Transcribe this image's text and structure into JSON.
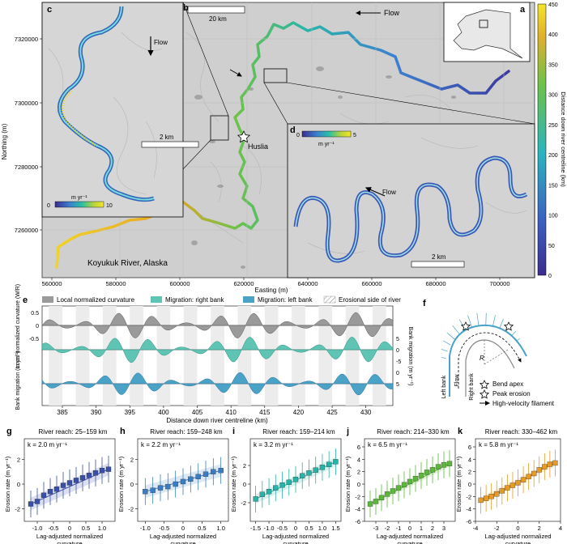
{
  "map": {
    "panel_labels": [
      "a",
      "b",
      "c",
      "d",
      "e",
      "f",
      "g",
      "h",
      "i",
      "j",
      "k"
    ],
    "scalebar_b": "20 km",
    "scalebar_c": "2 km",
    "scalebar_d": "2 km",
    "flow_label": "Flow",
    "town_label": "Huslia",
    "river_label": "Koyukuk River, Alaska",
    "easting_label": "Easting (m)",
    "northing_label": "Northing (m)",
    "easting_ticks": [
      "560000",
      "580000",
      "600000",
      "620000",
      "640000",
      "660000",
      "680000",
      "700000"
    ],
    "northing_ticks": [
      "7320000",
      "7300000",
      "7280000",
      "7260000"
    ],
    "colorbar_label": "Distance down river centreline (km)",
    "colorbar_ticks": [
      "450",
      "400",
      "350",
      "300",
      "250",
      "200",
      "150",
      "100",
      "50",
      "0"
    ],
    "cb_c": {
      "unit": "m yr⁻¹",
      "min": "0",
      "max": "10"
    },
    "cb_d": {
      "unit": "m yr⁻¹",
      "min": "0",
      "max": "5"
    }
  },
  "legend_e": {
    "curvature": "Local normalized curvature",
    "right": "Migration: right bank",
    "left": "Migration: left bank",
    "erosional": "Erosional side of river"
  },
  "panel_e": {
    "ylabel_top": "Local normalized curvature (W/R)",
    "ylabel_mid": "Bank migration (m yr⁻¹)",
    "ylabel_right": "Bank migration (m yr⁻¹)",
    "xlabel": "Distance down river centreline (km)",
    "xticks": [
      "385",
      "390",
      "395",
      "400",
      "405",
      "410",
      "415",
      "420",
      "425",
      "430"
    ],
    "right_ticks": [
      "5",
      "0",
      "-5",
      "0",
      "5"
    ],
    "left_ticks": [
      "0.5",
      "0",
      "-0.5"
    ]
  },
  "panel_f": {
    "left_bank": "Left bank",
    "right_bank": "Right bank",
    "flow": "Flow",
    "radius": "R",
    "bend_apex": "Bend apex",
    "peak_erosion": "Peak erosion",
    "filament": "High-velocity filament"
  },
  "colors": {
    "curvature": "#9a9a9a",
    "right_bank": "#5fc4b4",
    "left_bank": "#4aa3c7",
    "g": "#3a4fa8",
    "h": "#3b7dc4",
    "i": "#28b3a8",
    "j": "#5cb83a",
    "k": "#e79a24"
  },
  "chart_data": [
    {
      "type": "scatter",
      "panel": "g",
      "title": "River reach: 25–159 km",
      "k": "k = 2.0 m yr⁻¹",
      "xlabel": "Lag-adjusted normalized curvature",
      "ylabel": "Erosion rate (m yr⁻¹)",
      "xlim": [
        -1.4,
        1.4
      ],
      "ylim": [
        -3,
        3
      ],
      "xticks": [
        "-1.0",
        "-0.5",
        "0",
        "0.5",
        "1.0"
      ],
      "yticks": [
        "2",
        "0",
        "-2"
      ],
      "x": [
        -1.2,
        -1.0,
        -0.8,
        -0.6,
        -0.4,
        -0.2,
        0.0,
        0.2,
        0.4,
        0.6,
        0.8,
        1.0,
        1.2
      ],
      "y": [
        -1.6,
        -1.4,
        -0.9,
        -0.6,
        -0.4,
        -0.1,
        0.1,
        0.3,
        0.5,
        0.7,
        0.9,
        1.1,
        1.2
      ]
    },
    {
      "type": "scatter",
      "panel": "h",
      "title": "River reach: 159–248 km",
      "k": "k = 2.2 m yr⁻¹",
      "xlabel": "Lag-adjusted normalized curvature",
      "ylabel": "Erosion rate (m yr⁻¹)",
      "xlim": [
        -1.2,
        1.2
      ],
      "ylim": [
        -3,
        3
      ],
      "xticks": [
        "-1.0",
        "-0.5",
        "0",
        "0.5",
        "1.0"
      ],
      "yticks": [
        "2",
        "0",
        "-2"
      ],
      "x": [
        -1.0,
        -0.8,
        -0.6,
        -0.4,
        -0.2,
        0.0,
        0.2,
        0.4,
        0.6,
        0.8,
        1.0
      ],
      "y": [
        -0.6,
        -0.5,
        -0.3,
        -0.2,
        0.0,
        0.2,
        0.4,
        0.6,
        0.8,
        1.0,
        1.1
      ]
    },
    {
      "type": "scatter",
      "panel": "i",
      "title": "River reach: 159–214 km",
      "k": "k = 3.2 m yr⁻¹",
      "xlabel": "Lag-adjusted normalized curvature",
      "ylabel": "Erosion rate (m yr⁻¹)",
      "xlim": [
        -1.7,
        1.7
      ],
      "ylim": [
        -4,
        4
      ],
      "xticks": [
        "-1.5",
        "-1.0",
        "-0.5",
        "0",
        "0.5",
        "1.0",
        "1.5"
      ],
      "yticks": [
        "2",
        "0",
        "-2"
      ],
      "x": [
        -1.5,
        -1.25,
        -1.0,
        -0.75,
        -0.5,
        -0.25,
        0.0,
        0.25,
        0.5,
        0.75,
        1.0,
        1.25,
        1.5
      ],
      "y": [
        -1.6,
        -1.1,
        -0.8,
        -0.4,
        -0.1,
        0.2,
        0.5,
        0.9,
        1.2,
        1.5,
        1.8,
        2.1,
        2.4
      ]
    },
    {
      "type": "scatter",
      "panel": "j",
      "title": "River reach: 214–330 km",
      "k": "k = 6.5 m yr⁻¹",
      "xlabel": "Lag-adjusted normalized curvature",
      "ylabel": "Erosion rate (m yr⁻¹)",
      "xlim": [
        -4,
        4
      ],
      "ylim": [
        -6,
        6
      ],
      "xticks": [
        "-3",
        "-2",
        "-1",
        "0",
        "1",
        "2",
        "3"
      ],
      "yticks": [
        "6",
        "4",
        "2",
        "0",
        "-2",
        "-4",
        "-6"
      ],
      "x": [
        -3.5,
        -3.0,
        -2.5,
        -2.0,
        -1.5,
        -1.0,
        -0.5,
        0.0,
        0.5,
        1.0,
        1.5,
        2.0,
        2.5,
        3.0,
        3.5
      ],
      "y": [
        -3.2,
        -2.8,
        -2.2,
        -1.6,
        -1.1,
        -0.6,
        -0.1,
        0.4,
        0.9,
        1.4,
        1.9,
        2.3,
        2.8,
        3.1,
        3.3
      ]
    },
    {
      "type": "scatter",
      "panel": "k",
      "title": "River reach: 330–462 km",
      "k": "k = 5.8 m yr⁻¹",
      "xlabel": "Lag-adjusted normalized curvature",
      "ylabel": "Erosion rate (m yr⁻¹)",
      "xlim": [
        -4,
        4
      ],
      "ylim": [
        -6,
        6
      ],
      "xticks": [
        "-4",
        "-2",
        "0",
        "2",
        "4"
      ],
      "yticks": [
        "6",
        "4",
        "2",
        "0",
        "-2",
        "-4",
        "-6"
      ],
      "x": [
        -3.5,
        -3.0,
        -2.5,
        -2.0,
        -1.5,
        -1.0,
        -0.5,
        0.0,
        0.5,
        1.0,
        1.5,
        2.0,
        2.5,
        3.0,
        3.5
      ],
      "y": [
        -2.6,
        -2.3,
        -2.0,
        -1.6,
        -1.1,
        -0.6,
        -0.2,
        0.2,
        0.7,
        1.2,
        1.7,
        2.3,
        2.8,
        3.2,
        3.4
      ]
    }
  ]
}
